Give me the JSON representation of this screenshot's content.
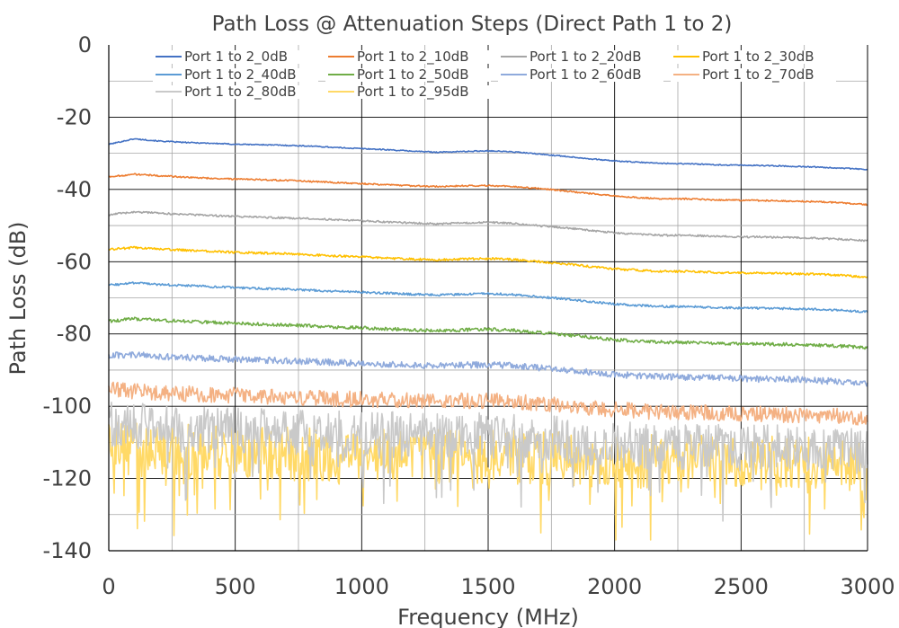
{
  "chart_data": {
    "type": "line",
    "title": "Path Loss @ Attenuation Steps (Direct Path 1 to 2)",
    "xlabel": "Frequency (MHz)",
    "ylabel": "Path Loss (dB)",
    "xlim": [
      0,
      3000
    ],
    "ylim": [
      -140,
      0
    ],
    "xticks": [
      0,
      500,
      1000,
      1500,
      2000,
      2500,
      3000
    ],
    "yticks": [
      0,
      -20,
      -40,
      -60,
      -80,
      -100,
      -120,
      -140
    ],
    "grid": true,
    "legend": "top",
    "x": [
      0,
      100,
      200,
      300,
      400,
      500,
      600,
      700,
      800,
      900,
      1000,
      1100,
      1200,
      1300,
      1400,
      1500,
      1600,
      1700,
      1800,
      1900,
      2000,
      2100,
      2200,
      2300,
      2400,
      2500,
      2600,
      2700,
      2800,
      2900,
      3000
    ],
    "series": [
      {
        "name": "Port 1 to 2_0dB",
        "color": "#4472c4",
        "noise": 0.15,
        "values": [
          -27.5,
          -26.0,
          -26.6,
          -27.0,
          -27.2,
          -27.5,
          -27.6,
          -27.8,
          -28.0,
          -28.4,
          -28.7,
          -29.0,
          -29.4,
          -29.7,
          -29.5,
          -29.3,
          -29.6,
          -30.2,
          -30.8,
          -31.5,
          -32.1,
          -32.5,
          -32.8,
          -32.9,
          -33.2,
          -33.3,
          -33.4,
          -33.6,
          -33.8,
          -34.1,
          -34.5
        ]
      },
      {
        "name": "Port 1 to 2_10dB",
        "color": "#ed7d31",
        "noise": 0.2,
        "values": [
          -36.5,
          -35.8,
          -36.2,
          -36.6,
          -36.9,
          -37.1,
          -37.3,
          -37.5,
          -37.8,
          -38.1,
          -38.4,
          -38.7,
          -39.0,
          -39.2,
          -39.0,
          -38.9,
          -39.2,
          -39.7,
          -40.4,
          -41.1,
          -41.8,
          -42.3,
          -42.6,
          -42.6,
          -42.9,
          -43.0,
          -43.1,
          -43.2,
          -43.4,
          -43.7,
          -44.2
        ]
      },
      {
        "name": "Port 1 to 2_20dB",
        "color": "#a5a5a5",
        "noise": 0.25,
        "values": [
          -47.0,
          -46.2,
          -46.6,
          -46.9,
          -47.2,
          -47.5,
          -47.7,
          -47.9,
          -48.1,
          -48.4,
          -48.7,
          -49.0,
          -49.3,
          -49.5,
          -49.3,
          -49.1,
          -49.4,
          -50.0,
          -50.6,
          -51.3,
          -52.0,
          -52.4,
          -52.7,
          -52.7,
          -53.0,
          -53.1,
          -53.2,
          -53.3,
          -53.5,
          -53.8,
          -54.2
        ]
      },
      {
        "name": "Port 1 to 2_30dB",
        "color": "#ffc000",
        "noise": 0.3,
        "values": [
          -56.6,
          -56.1,
          -56.5,
          -56.8,
          -57.1,
          -57.4,
          -57.6,
          -57.8,
          -58.1,
          -58.4,
          -58.7,
          -59.0,
          -59.3,
          -59.5,
          -59.3,
          -59.1,
          -59.4,
          -60.0,
          -60.6,
          -61.3,
          -62.0,
          -62.4,
          -62.7,
          -62.7,
          -63.0,
          -63.1,
          -63.2,
          -63.3,
          -63.5,
          -63.8,
          -64.2
        ]
      },
      {
        "name": "Port 1 to 2_40dB",
        "color": "#5b9bd5",
        "noise": 0.3,
        "values": [
          -66.5,
          -65.9,
          -66.3,
          -66.6,
          -66.9,
          -67.2,
          -67.4,
          -67.6,
          -67.9,
          -68.2,
          -68.4,
          -68.7,
          -69.0,
          -69.2,
          -69.0,
          -68.8,
          -69.1,
          -69.7,
          -70.3,
          -71.0,
          -71.7,
          -72.1,
          -72.4,
          -72.4,
          -72.7,
          -72.8,
          -72.9,
          -73.0,
          -73.2,
          -73.5,
          -73.9
        ]
      },
      {
        "name": "Port 1 to 2_50dB",
        "color": "#70ad47",
        "noise": 0.45,
        "values": [
          -76.5,
          -75.8,
          -76.2,
          -76.5,
          -76.8,
          -77.1,
          -77.3,
          -77.5,
          -77.8,
          -78.1,
          -78.3,
          -78.6,
          -78.9,
          -79.1,
          -78.9,
          -78.7,
          -79.0,
          -79.6,
          -80.2,
          -80.9,
          -81.6,
          -82.0,
          -82.3,
          -82.3,
          -82.6,
          -82.7,
          -82.8,
          -82.9,
          -83.1,
          -83.4,
          -83.8
        ]
      },
      {
        "name": "Port 1 to 2_60dB",
        "color": "#8faadc",
        "noise": 0.9,
        "values": [
          -86.0,
          -85.8,
          -86.2,
          -86.5,
          -86.8,
          -87.0,
          -87.2,
          -87.4,
          -87.6,
          -87.9,
          -88.1,
          -88.4,
          -88.6,
          -88.8,
          -88.6,
          -88.5,
          -88.8,
          -89.3,
          -89.9,
          -90.5,
          -91.2,
          -91.6,
          -91.9,
          -92.0,
          -92.2,
          -92.3,
          -92.5,
          -92.6,
          -92.9,
          -93.2,
          -93.6
        ]
      },
      {
        "name": "Port 1 to 2_70dB",
        "color": "#f4b183",
        "noise": 2.2,
        "values": [
          -95.5,
          -95.8,
          -96.2,
          -96.5,
          -96.8,
          -97.0,
          -97.2,
          -97.4,
          -97.6,
          -97.9,
          -98.1,
          -98.3,
          -98.5,
          -98.7,
          -98.5,
          -98.4,
          -98.7,
          -99.2,
          -99.8,
          -100.3,
          -100.9,
          -101.3,
          -101.6,
          -101.7,
          -101.9,
          -102.0,
          -102.2,
          -102.3,
          -102.5,
          -102.8,
          -103.2
        ]
      },
      {
        "name": "Port 1 to 2_80dB",
        "color": "#c9c9c9",
        "noise": 6.5,
        "values": [
          -104.5,
          -105.5,
          -106.0,
          -106.3,
          -106.5,
          -106.8,
          -107.0,
          -107.2,
          -107.4,
          -107.6,
          -107.8,
          -108.0,
          -108.2,
          -108.4,
          -108.2,
          -108.1,
          -108.4,
          -108.9,
          -109.4,
          -109.9,
          -110.4,
          -110.8,
          -111.0,
          -111.1,
          -111.3,
          -111.4,
          -111.6,
          -111.7,
          -111.9,
          -112.2,
          -112.5
        ]
      },
      {
        "name": "Port 1 to 2_95dB",
        "color": "#ffd966",
        "noise": 7.5,
        "values": [
          -111.0,
          -112.0,
          -112.3,
          -112.5,
          -112.7,
          -112.9,
          -113.0,
          -113.2,
          -113.3,
          -113.5,
          -113.6,
          -113.8,
          -113.9,
          -114.0,
          -113.9,
          -113.8,
          -114.0,
          -114.2,
          -114.5,
          -114.8,
          -115.0,
          -115.2,
          -115.3,
          -115.4,
          -115.5,
          -115.6,
          -115.7,
          -115.8,
          -115.9,
          -116.1,
          -116.3
        ]
      }
    ]
  }
}
